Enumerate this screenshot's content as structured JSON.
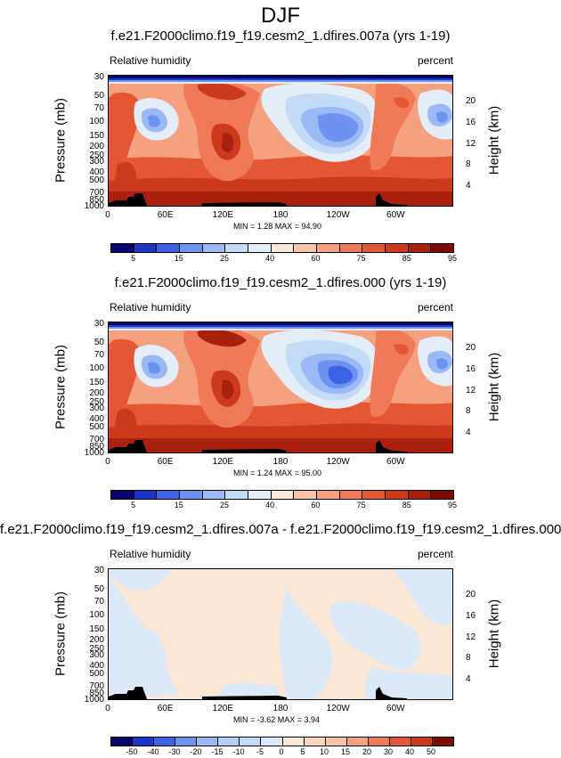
{
  "title": "DJF",
  "panels": [
    {
      "title": "f.e21.F2000climo.f19_f19.cesm2_1.dfires.007a (yrs 1-19)",
      "variable": "Relative humidity",
      "units": "percent",
      "ylabel_left": "Pressure (mb)",
      "ylabel_right": "Height (km)",
      "stats": "MIN =   1.28   MAX =  94.90",
      "min": 1.28,
      "max": 94.9
    },
    {
      "title": "f.e21.F2000climo.f19_f19.cesm2_1.dfires.000 (yrs 1-19)",
      "variable": "Relative humidity",
      "units": "percent",
      "ylabel_left": "Pressure (mb)",
      "ylabel_right": "Height (km)",
      "stats": "MIN =   1.24   MAX =  95.00",
      "min": 1.24,
      "max": 95.0
    },
    {
      "title": "f.e21.F2000climo.f19_f19.cesm2_1.dfires.007a - f.e21.F2000climo.f19_f19.cesm2_1.dfires.000",
      "variable": "Relative humidity",
      "units": "percent",
      "ylabel_left": "Pressure (mb)",
      "ylabel_right": "Height (km)",
      "stats": "MIN =  -3.62   MAX =   3.94",
      "min": -3.62,
      "max": 3.94
    }
  ],
  "axes": {
    "x_ticks": [
      "0",
      "60E",
      "120E",
      "180",
      "120W",
      "60W"
    ],
    "y_left_ticks": [
      "30",
      "50",
      "70",
      "100",
      "150",
      "200",
      "250",
      "300",
      "400",
      "500",
      "700",
      "850",
      "1000"
    ],
    "y_right_ticks": [
      "20",
      "16",
      "12",
      "8",
      "4"
    ]
  },
  "colorbars": [
    {
      "labels": [
        "5",
        "15",
        "25",
        "40",
        "60",
        "75",
        "85",
        "95"
      ],
      "colors": [
        "#08066b",
        "#1a37c9",
        "#3d62e3",
        "#6c93f0",
        "#9ab9f5",
        "#c4dbf7",
        "#e3eef9",
        "#fbe8d6",
        "#f9c5a7",
        "#f5a07f",
        "#ee7a58",
        "#e45735",
        "#cc3a1e",
        "#a9200f",
        "#7d0c05"
      ]
    },
    {
      "labels": [
        "5",
        "15",
        "25",
        "40",
        "60",
        "75",
        "85",
        "95"
      ],
      "colors": [
        "#08066b",
        "#1a37c9",
        "#3d62e3",
        "#6c93f0",
        "#9ab9f5",
        "#c4dbf7",
        "#e3eef9",
        "#fbe8d6",
        "#f9c5a7",
        "#f5a07f",
        "#ee7a58",
        "#e45735",
        "#cc3a1e",
        "#a9200f",
        "#7d0c05"
      ]
    },
    {
      "labels": [
        "-50",
        "-40",
        "-30",
        "-20",
        "-15",
        "-10",
        "-5",
        "0",
        "5",
        "10",
        "15",
        "20",
        "30",
        "40",
        "50"
      ],
      "colors": [
        "#08066b",
        "#1a37c9",
        "#3d62e3",
        "#6c93f0",
        "#9ab9f5",
        "#b5cef5",
        "#c4dbf7",
        "#dbe9f8",
        "#fbe8d6",
        "#f9d6bb",
        "#f9c5a7",
        "#f5a07f",
        "#ee7a58",
        "#e45735",
        "#cc3a1e",
        "#7d0c05"
      ]
    }
  ],
  "chart_data": [
    {
      "type": "heatmap",
      "title": "f.e21.F2000climo.f19_f19.cesm2_1.dfires.007a (yrs 1-19)",
      "xlabel": "",
      "ylabel": "Pressure (mb)",
      "y2label": "Height (km)",
      "x_ticks": [
        "0",
        "60E",
        "120E",
        "180",
        "120W",
        "60W"
      ],
      "y_ticks": [
        30,
        50,
        70,
        100,
        150,
        200,
        250,
        300,
        400,
        500,
        700,
        850,
        1000
      ],
      "colorbar_levels": [
        5,
        15,
        25,
        40,
        60,
        75,
        85,
        95
      ],
      "min": 1.28,
      "max": 94.9
    },
    {
      "type": "heatmap",
      "title": "f.e21.F2000climo.f19_f19.cesm2_1.dfires.000 (yrs 1-19)",
      "xlabel": "",
      "ylabel": "Pressure (mb)",
      "y2label": "Height (km)",
      "x_ticks": [
        "0",
        "60E",
        "120E",
        "180",
        "120W",
        "60W"
      ],
      "y_ticks": [
        30,
        50,
        70,
        100,
        150,
        200,
        250,
        300,
        400,
        500,
        700,
        850,
        1000
      ],
      "colorbar_levels": [
        5,
        15,
        25,
        40,
        60,
        75,
        85,
        95
      ],
      "min": 1.24,
      "max": 95.0
    },
    {
      "type": "heatmap",
      "title": "f.e21.F2000climo.f19_f19.cesm2_1.dfires.007a - f.e21.F2000climo.f19_f19.cesm2_1.dfires.000",
      "xlabel": "",
      "ylabel": "Pressure (mb)",
      "y2label": "Height (km)",
      "x_ticks": [
        "0",
        "60E",
        "120E",
        "180",
        "120W",
        "60W"
      ],
      "y_ticks": [
        30,
        50,
        70,
        100,
        150,
        200,
        250,
        300,
        400,
        500,
        700,
        850,
        1000
      ],
      "colorbar_levels": [
        -50,
        -40,
        -30,
        -20,
        -15,
        -10,
        -5,
        0,
        5,
        10,
        15,
        20,
        30,
        40,
        50
      ],
      "min": -3.62,
      "max": 3.94
    }
  ]
}
